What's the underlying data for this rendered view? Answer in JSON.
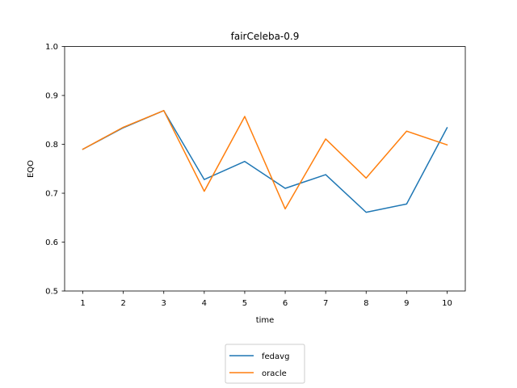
{
  "chart_data": {
    "type": "line",
    "title": "fairCeleba-0.9",
    "xlabel": "time",
    "ylabel": "EQO",
    "x": [
      1,
      2,
      3,
      4,
      5,
      6,
      7,
      8,
      9,
      10
    ],
    "xticks": [
      "1",
      "2",
      "3",
      "4",
      "5",
      "6",
      "7",
      "8",
      "9",
      "10"
    ],
    "yticks": [
      "0.5",
      "0.6",
      "0.7",
      "0.8",
      "0.9",
      "1.0"
    ],
    "ylim": [
      0.5,
      1.0
    ],
    "xlim": [
      0.55,
      10.45
    ],
    "grid": false,
    "legend_position": "bottom-center",
    "series": [
      {
        "name": "fedavg",
        "color": "#1f77b4",
        "values": [
          0.79,
          0.834,
          0.869,
          0.728,
          0.765,
          0.71,
          0.738,
          0.661,
          0.678,
          0.834
        ]
      },
      {
        "name": "oracle",
        "color": "#ff7f0e",
        "values": [
          0.79,
          0.835,
          0.869,
          0.704,
          0.857,
          0.668,
          0.811,
          0.731,
          0.827,
          0.799
        ]
      }
    ]
  }
}
